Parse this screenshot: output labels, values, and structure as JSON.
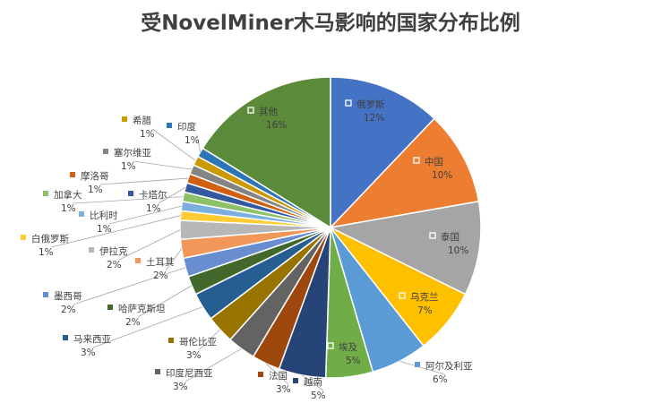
{
  "chart_data": {
    "type": "pie",
    "title": "受NovelMiner木马影响的国家分布比例",
    "slices": [
      {
        "name": "俄罗斯",
        "pct": "12%",
        "value": 12,
        "color": "#4472c4"
      },
      {
        "name": "中国",
        "pct": "10%",
        "value": 10,
        "color": "#ed7d31"
      },
      {
        "name": "泰国",
        "pct": "10%",
        "value": 10,
        "color": "#a5a5a5"
      },
      {
        "name": "乌克兰",
        "pct": "7%",
        "value": 7,
        "color": "#ffc000"
      },
      {
        "name": "阿尔及利亚",
        "pct": "6%",
        "value": 6,
        "color": "#5b9bd5"
      },
      {
        "name": "埃及",
        "pct": "5%",
        "value": 5,
        "color": "#70ad47"
      },
      {
        "name": "越南",
        "pct": "5%",
        "value": 5,
        "color": "#264478"
      },
      {
        "name": "法国",
        "pct": "3%",
        "value": 3,
        "color": "#9e480e"
      },
      {
        "name": "印度尼西亚",
        "pct": "3%",
        "value": 3,
        "color": "#636363"
      },
      {
        "name": "哥伦比亚",
        "pct": "3%",
        "value": 3,
        "color": "#997300"
      },
      {
        "name": "马来西亚",
        "pct": "3%",
        "value": 3,
        "color": "#255e91"
      },
      {
        "name": "哈萨克斯坦",
        "pct": "2%",
        "value": 2,
        "color": "#43682b"
      },
      {
        "name": "墨西哥",
        "pct": "2%",
        "value": 2,
        "color": "#698ed0"
      },
      {
        "name": "土耳其",
        "pct": "2%",
        "value": 2,
        "color": "#f1975a"
      },
      {
        "name": "伊拉克",
        "pct": "2%",
        "value": 2,
        "color": "#b7b7b7"
      },
      {
        "name": "白俄罗斯",
        "pct": "1%",
        "value": 1,
        "color": "#ffcd33"
      },
      {
        "name": "比利时",
        "pct": "1%",
        "value": 1,
        "color": "#7cafdd"
      },
      {
        "name": "加拿大",
        "pct": "1%",
        "value": 1,
        "color": "#8cc168"
      },
      {
        "name": "卡塔尔",
        "pct": "1%",
        "value": 1,
        "color": "#335aa1"
      },
      {
        "name": "摩洛哥",
        "pct": "1%",
        "value": 1,
        "color": "#d26012"
      },
      {
        "name": "塞尔维亚",
        "pct": "1%",
        "value": 1,
        "color": "#848484"
      },
      {
        "name": "希腊",
        "pct": "1%",
        "value": 1,
        "color": "#cc9a00"
      },
      {
        "name": "印度",
        "pct": "1%",
        "value": 1,
        "color": "#2e75b6"
      },
      {
        "name": "其他",
        "pct": "16%",
        "value": 16,
        "color": "#5a8a3a"
      }
    ]
  }
}
